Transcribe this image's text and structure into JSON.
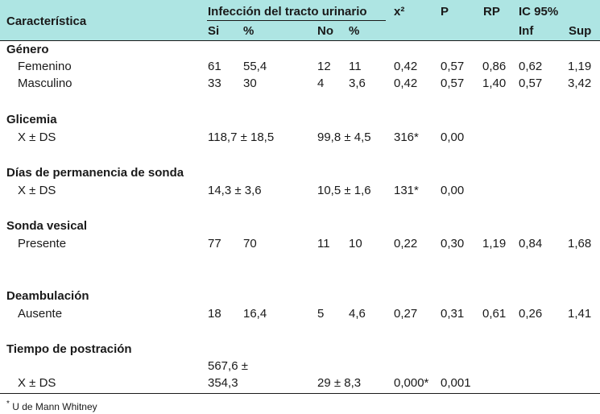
{
  "header": {
    "caracteristica": "Característica",
    "group_title": "Infección del tracto urinario",
    "si": "Si",
    "pct1": "%",
    "no": "No",
    "pct2": "%",
    "x2": "x²",
    "p": "P",
    "rp": "RP",
    "ic": "IC 95%",
    "inf": "Inf",
    "sup": "Sup"
  },
  "sections": {
    "genero": {
      "title": "Género",
      "rows": [
        {
          "label": "Femenino",
          "si": "61",
          "si_pct": "55,4",
          "no": "12",
          "no_pct": "11",
          "x2": "0,42",
          "p": "0,57",
          "rp": "0,86",
          "inf": "0,62",
          "sup": "1,19"
        },
        {
          "label": "Masculino",
          "si": "33",
          "si_pct": "30",
          "no": "4",
          "no_pct": "3,6",
          "x2": "0,42",
          "p": "0,57",
          "rp": "1,40",
          "inf": "0,57",
          "sup": "3,42"
        }
      ]
    },
    "glicemia": {
      "title": "Glicemia",
      "row": {
        "label": "X ± DS",
        "si": "118,7 ± 18,5",
        "no": "99,8 ± 4,5",
        "x2": "316*",
        "p": "0,00"
      }
    },
    "dias": {
      "title": "Días de permanencia de sonda",
      "row": {
        "label": "X ± DS",
        "si": "14,3 ± 3,6",
        "no": "10,5 ± 1,6",
        "x2": "131*",
        "p": "0,00"
      }
    },
    "sonda": {
      "title": "Sonda vesical",
      "row": {
        "label": "Presente",
        "si": "77",
        "si_pct": "70",
        "no": "11",
        "no_pct": "10",
        "x2": "0,22",
        "p": "0,30",
        "rp": "1,19",
        "inf": "0,84",
        "sup": "1,68"
      }
    },
    "deambulacion": {
      "title": "Deambulación",
      "row": {
        "label": "Ausente",
        "si": "18",
        "si_pct": "16,4",
        "no": "5",
        "no_pct": "4,6",
        "x2": "0,27",
        "p": "0,31",
        "rp": "0,61",
        "inf": "0,26",
        "sup": "1,41"
      }
    },
    "postracion": {
      "title": "Tiempo de postración",
      "row": {
        "label": "X ± DS",
        "si_line1": "567,6 ±",
        "si_line2": "354,3",
        "no": "29 ± 8,3",
        "x2": "0,000*",
        "p": "0,001"
      }
    }
  },
  "footnote": {
    "mark": "*",
    "text": "U de Mann Whitney"
  }
}
